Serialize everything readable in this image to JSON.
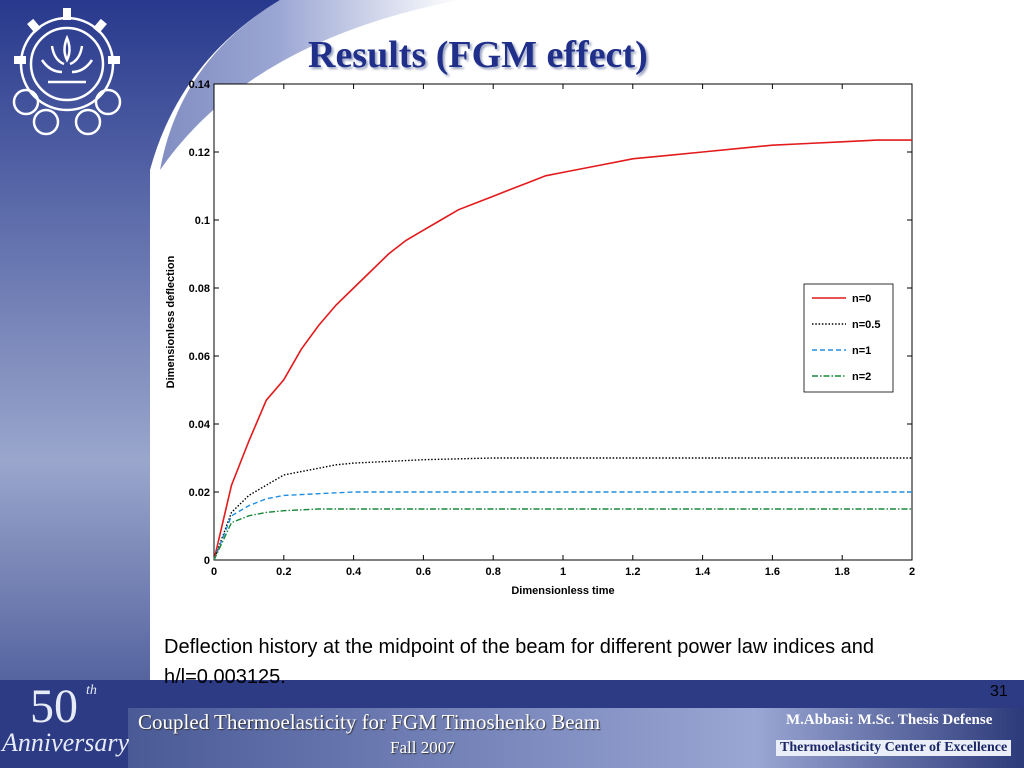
{
  "slide": {
    "title": "Results (FGM effect)",
    "caption": "Deflection history at  the midpoint of the beam for different power law indices and h/l=0.003125.",
    "page_number": "31"
  },
  "branding": {
    "anniversary_number": "50",
    "anniversary_suffix": "th",
    "anniversary_word": "Anniversary",
    "logo_icon": "university-gear-emblem-icon"
  },
  "footer": {
    "title": "Coupled Thermoelasticity for FGM Timoshenko Beam",
    "date": "Fall 2007",
    "author": "M.Abbasi: M.Sc. Thesis Defense",
    "center": "Thermoelasticity Center of Excellence"
  },
  "colors": {
    "title": "#1f2f8a",
    "background_blue": "#2a3c8c",
    "n0": "#e31a1c",
    "n05": "#000000",
    "n1": "#1f8fe0",
    "n2": "#1a8a3a"
  },
  "chart_data": {
    "type": "line",
    "xlabel": "Dimensionless time",
    "ylabel": "Dimensionless deflection",
    "xlim": [
      0,
      2
    ],
    "ylim": [
      0,
      0.14
    ],
    "xticks": [
      "0",
      "0.2",
      "0.4",
      "0.6",
      "0.8",
      "1",
      "1.2",
      "1.4",
      "1.6",
      "1.8",
      "2"
    ],
    "yticks": [
      "0",
      "0.02",
      "0.04",
      "0.06",
      "0.08",
      "0.1",
      "0.12",
      "0.14"
    ],
    "legend_position": "right",
    "series": [
      {
        "name": "n=0",
        "color": "#e31a1c",
        "dash": "solid",
        "x": [
          0,
          0.05,
          0.1,
          0.15,
          0.2,
          0.25,
          0.3,
          0.35,
          0.4,
          0.45,
          0.5,
          0.55,
          0.6,
          0.65,
          0.7,
          0.75,
          0.8,
          0.85,
          0.9,
          0.95,
          1.0,
          1.1,
          1.2,
          1.3,
          1.4,
          1.5,
          1.6,
          1.7,
          1.8,
          1.9,
          2.0
        ],
        "y": [
          0,
          0.022,
          0.035,
          0.047,
          0.053,
          0.062,
          0.069,
          0.075,
          0.08,
          0.085,
          0.09,
          0.094,
          0.097,
          0.1,
          0.103,
          0.105,
          0.107,
          0.109,
          0.111,
          0.113,
          0.114,
          0.116,
          0.118,
          0.119,
          0.12,
          0.121,
          0.122,
          0.1225,
          0.123,
          0.1235,
          0.1235
        ]
      },
      {
        "name": "n=0.5",
        "color": "#000000",
        "dash": "dotted",
        "x": [
          0,
          0.05,
          0.1,
          0.15,
          0.2,
          0.25,
          0.3,
          0.35,
          0.4,
          0.5,
          0.6,
          0.8,
          1.0,
          1.2,
          1.4,
          1.6,
          1.8,
          2.0
        ],
        "y": [
          0,
          0.014,
          0.019,
          0.022,
          0.025,
          0.026,
          0.027,
          0.028,
          0.0285,
          0.029,
          0.0295,
          0.03,
          0.03,
          0.03,
          0.03,
          0.03,
          0.03,
          0.03
        ]
      },
      {
        "name": "n=1",
        "color": "#1f8fe0",
        "dash": "dashed",
        "x": [
          0,
          0.05,
          0.1,
          0.15,
          0.2,
          0.3,
          0.4,
          0.6,
          0.8,
          1.0,
          1.2,
          1.4,
          1.6,
          1.8,
          2.0
        ],
        "y": [
          0,
          0.013,
          0.016,
          0.018,
          0.019,
          0.0195,
          0.02,
          0.02,
          0.02,
          0.02,
          0.02,
          0.02,
          0.02,
          0.02,
          0.02
        ]
      },
      {
        "name": "n=2",
        "color": "#1a8a3a",
        "dash": "dashdot",
        "x": [
          0,
          0.05,
          0.1,
          0.15,
          0.2,
          0.3,
          0.4,
          0.6,
          0.8,
          1.0,
          1.2,
          1.4,
          1.6,
          1.8,
          2.0
        ],
        "y": [
          0,
          0.011,
          0.013,
          0.014,
          0.0145,
          0.015,
          0.015,
          0.015,
          0.015,
          0.015,
          0.015,
          0.015,
          0.015,
          0.015,
          0.015
        ]
      }
    ]
  }
}
